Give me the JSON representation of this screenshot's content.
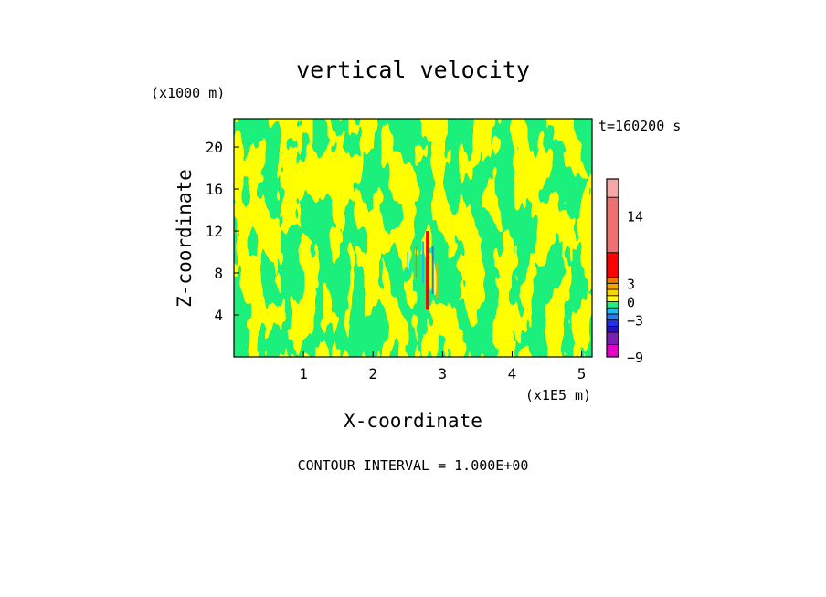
{
  "chart_data": {
    "type": "heatmap",
    "title": "vertical velocity",
    "xlabel": "X-coordinate",
    "ylabel": "Z-coordinate",
    "x_unit": "(x1E5 m)",
    "y_unit": "(x1000 m)",
    "time_label": "t=160200 s",
    "xlim": [
      0,
      5.15
    ],
    "ylim": [
      0,
      22.7
    ],
    "x_ticks": [
      1,
      2,
      3,
      4,
      5
    ],
    "y_ticks": [
      4,
      8,
      12,
      16,
      20
    ],
    "grid": false,
    "contour_interval": "CONTOUR INTERVAL = 1.000E+00",
    "field_description_values": {
      "dominant_levels": [
        -0.5,
        0.5
      ],
      "peak_updraft_x": 2.82,
      "peak_updraft_z_range": [
        5,
        12
      ]
    },
    "colorbar": {
      "min": -9,
      "max": 20,
      "tick_values": [
        14,
        3,
        0,
        -3,
        -9
      ],
      "tick_labels": [
        "14",
        "3",
        "0",
        "−3",
        "−9"
      ],
      "levels": [
        {
          "from": -9,
          "to": -7,
          "color": "#e600cc"
        },
        {
          "from": -7,
          "to": -5,
          "color": "#7b1fb3"
        },
        {
          "from": -5,
          "to": -4,
          "color": "#2a0fc4"
        },
        {
          "from": -4,
          "to": -3,
          "color": "#1f33e8"
        },
        {
          "from": -3,
          "to": -2,
          "color": "#2f78f2"
        },
        {
          "from": -2,
          "to": -1,
          "color": "#27b8ea"
        },
        {
          "from": -1,
          "to": 0,
          "color": "#1ef07c"
        },
        {
          "from": 0,
          "to": 1,
          "color": "#ffff00"
        },
        {
          "from": 1,
          "to": 2,
          "color": "#ffd400"
        },
        {
          "from": 2,
          "to": 3,
          "color": "#f5a500"
        },
        {
          "from": 3,
          "to": 4,
          "color": "#ee7800"
        },
        {
          "from": 4,
          "to": 8,
          "color": "#ff0000"
        },
        {
          "from": 8,
          "to": 17,
          "color": "#ef7070"
        },
        {
          "from": 17,
          "to": 20,
          "color": "#f5a6a6"
        }
      ]
    }
  }
}
